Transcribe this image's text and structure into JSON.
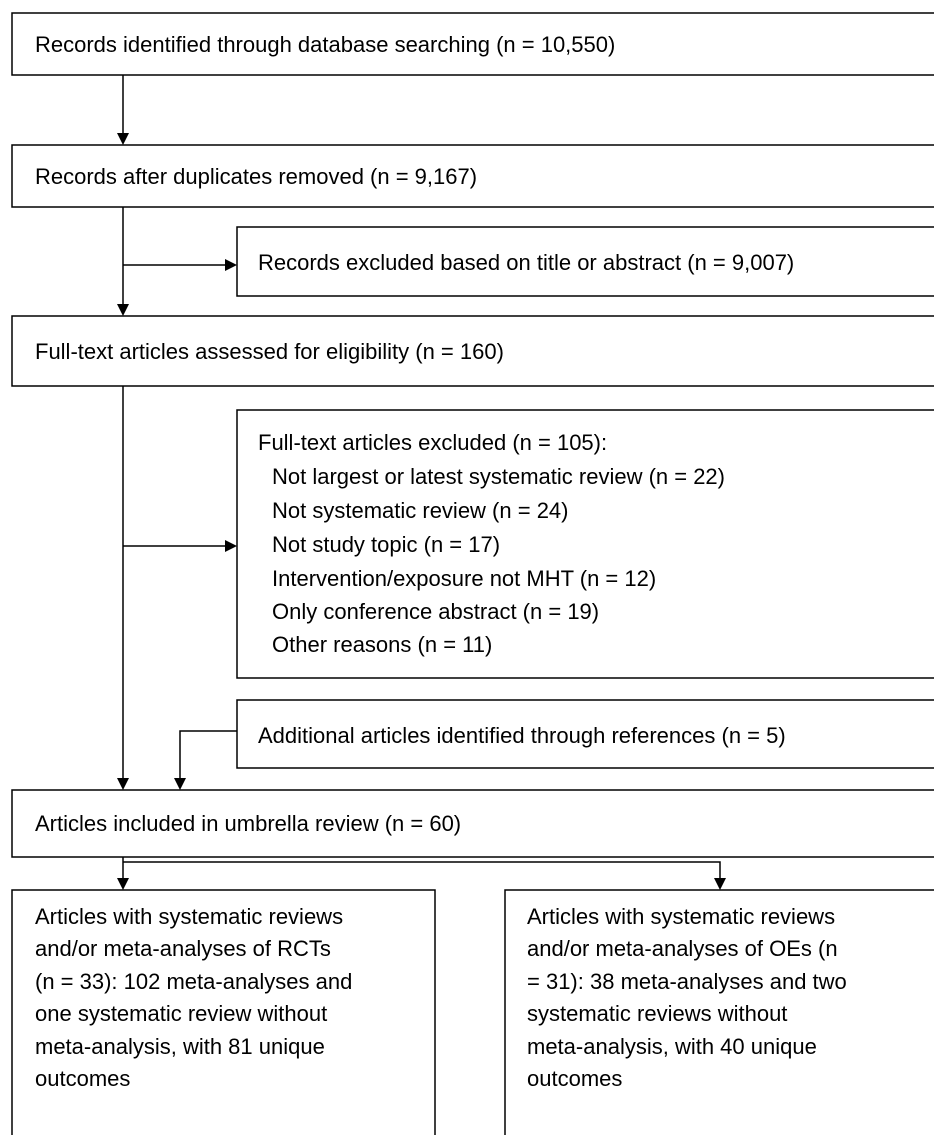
{
  "nodes": [
    {
      "label": "Records identified through database searching (n = 10,550)"
    },
    {
      "label": "Records after duplicates removed (n = 9,167)"
    },
    {
      "label": "Records excluded based on title or abstract (n = 9,007)"
    },
    {
      "label": "Full-text articles assessed for eligibility (n = 160)"
    },
    {
      "label": "Full-text articles excluded (n = 105):",
      "items": [
        "Not largest or latest systematic review (n = 22)",
        "Not systematic review (n = 24)",
        "Not study topic (n = 17)",
        "Intervention/exposure not MHT (n = 12)",
        "Only conference abstract (n = 19)",
        "Other reasons (n = 11)"
      ]
    },
    {
      "label": "Additional articles identified through references (n = 5)"
    },
    {
      "label": "Articles included in umbrella review (n = 60)"
    },
    {
      "lines": [
        "Articles with systematic reviews",
        "and/or meta-analyses of RCTs",
        "(n = 33): 102 meta-analyses and",
        "one systematic review without",
        "meta-analysis, with 81 unique",
        "outcomes"
      ]
    },
    {
      "lines": [
        "Articles with systematic reviews",
        "and/or meta-analyses of OEs (n",
        "= 31): 38 meta-analyses and two",
        "systematic reviews without",
        "meta-analysis, with 40 unique",
        "outcomes"
      ]
    }
  ]
}
